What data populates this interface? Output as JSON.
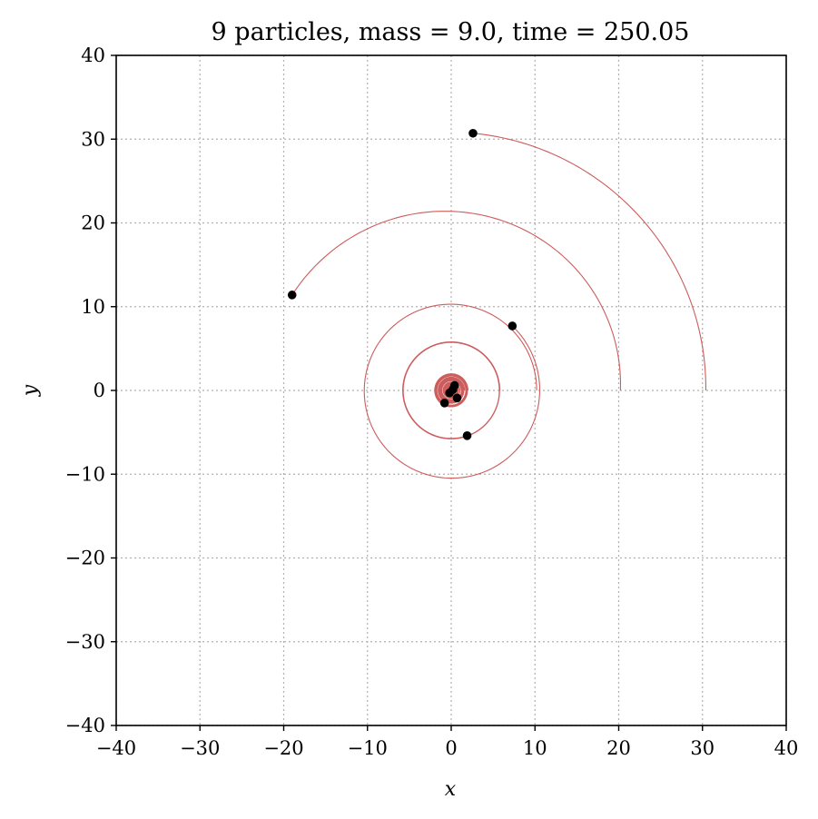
{
  "chart_data": {
    "type": "scatter",
    "title": "9 particles, mass = 9.0, time = 250.05",
    "xlabel": "x",
    "ylabel": "y",
    "xlim": [
      -40,
      40
    ],
    "ylim": [
      -40,
      40
    ],
    "xticks": [
      -40,
      -30,
      -20,
      -10,
      0,
      10,
      20,
      30,
      40
    ],
    "yticks": [
      -40,
      -30,
      -20,
      -10,
      0,
      10,
      20,
      30,
      40
    ],
    "xtick_labels": [
      "−40",
      "−30",
      "−20",
      "−10",
      "0",
      "10",
      "20",
      "30",
      "40"
    ],
    "ytick_labels": [
      "−40",
      "−30",
      "−20",
      "−10",
      "0",
      "10",
      "20",
      "30",
      "40"
    ],
    "grid": true,
    "particle_color": "#000000",
    "trail_color": "#cd5c5c",
    "particles": [
      {
        "x": 2.6,
        "y": 30.7
      },
      {
        "x": -19.0,
        "y": 11.4
      },
      {
        "x": 7.3,
        "y": 7.7
      },
      {
        "x": 1.9,
        "y": -5.4
      },
      {
        "x": -0.8,
        "y": -1.5
      },
      {
        "x": 0.7,
        "y": -0.9
      },
      {
        "x": 0.2,
        "y": 0.1
      },
      {
        "x": 0.4,
        "y": 0.6
      },
      {
        "x": -0.2,
        "y": -0.3
      }
    ],
    "trails": [
      {
        "start_radius": 30.4,
        "end": {
          "x": 2.6,
          "y": 30.7
        }
      },
      {
        "start_radius": 20.2,
        "end": {
          "x": -19.0,
          "y": 11.4
        }
      },
      {
        "start_radius": 10.2,
        "end": {
          "x": 7.3,
          "y": 7.7
        }
      },
      {
        "start_radius": 5.8,
        "end": {
          "x": 1.9,
          "y": -5.4
        }
      },
      {
        "start_radius": 2.0,
        "end": {
          "x": -0.8,
          "y": -1.5
        }
      },
      {
        "start_radius": 1.6,
        "end": {
          "x": 0.7,
          "y": -0.9
        }
      },
      {
        "start_radius": 1.2,
        "end": {
          "x": 0.2,
          "y": 0.1
        }
      },
      {
        "start_radius": 0.9,
        "end": {
          "x": 0.4,
          "y": 0.6
        }
      },
      {
        "start_radius": 0.6,
        "end": {
          "x": -0.2,
          "y": -0.3
        }
      }
    ]
  }
}
